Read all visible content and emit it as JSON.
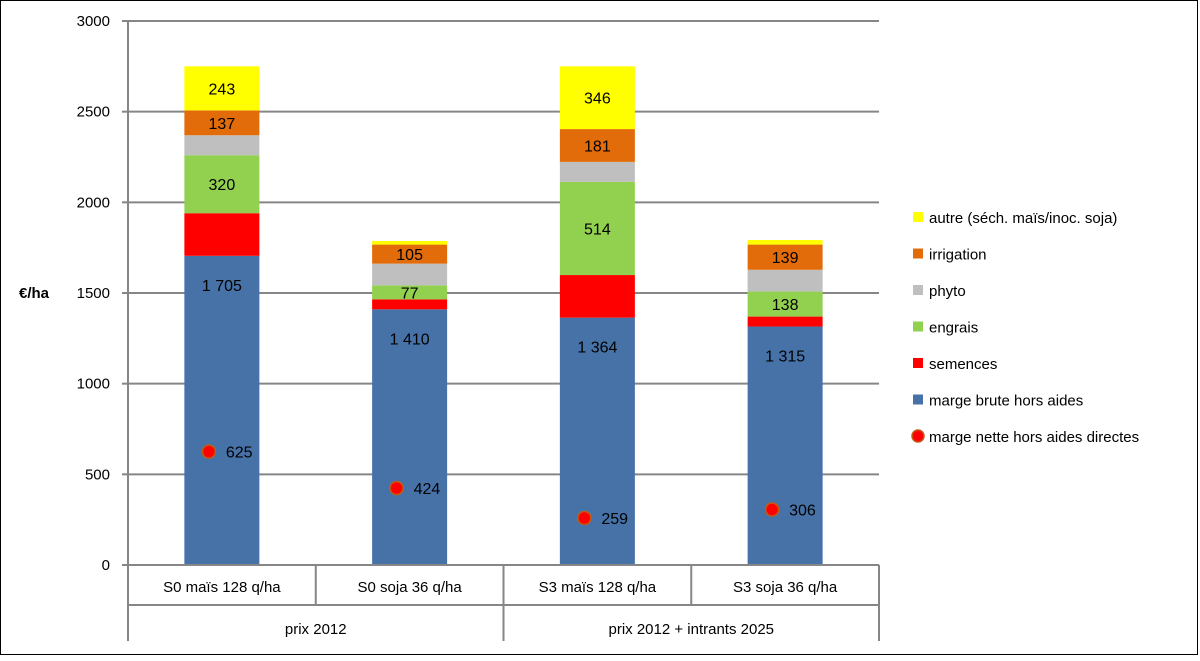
{
  "chart_data": {
    "type": "bar",
    "stacked": true,
    "ylabel": "€/ha",
    "ylim": [
      0,
      3000
    ],
    "yticks": [
      0,
      500,
      1000,
      1500,
      2000,
      2500,
      3000
    ],
    "grid": true,
    "legend_position": "right",
    "categories": [
      "S0 maïs 128 q/ha",
      "S0 soja 36 q/ha",
      "S3 maïs 128 q/ha",
      "S3 soja 36 q/ha"
    ],
    "groups": [
      {
        "label": "prix 2012",
        "span": [
          0,
          1
        ]
      },
      {
        "label": "prix 2012 + intrants 2025",
        "span": [
          2,
          3
        ]
      }
    ],
    "series": [
      {
        "name": "marge brute hors aides",
        "color": "#4672A8",
        "values": [
          1705,
          1410,
          1364,
          1315
        ],
        "labels": [
          "1 705",
          "1 410",
          "1 364",
          "1 315"
        ]
      },
      {
        "name": "semences",
        "color": "#FF0000",
        "values": [
          235,
          55,
          235,
          55
        ],
        "labels": [
          "",
          "",
          "",
          ""
        ]
      },
      {
        "name": "engrais",
        "color": "#92D050",
        "values": [
          320,
          77,
          514,
          138
        ],
        "labels": [
          "320",
          "77",
          "514",
          "138"
        ]
      },
      {
        "name": "phyto",
        "color": "#BFBFBF",
        "values": [
          110,
          120,
          110,
          120
        ],
        "labels": [
          "",
          "",
          "",
          ""
        ]
      },
      {
        "name": "irrigation",
        "color": "#E36C0A",
        "values": [
          137,
          105,
          181,
          139
        ],
        "labels": [
          "137",
          "105",
          "181",
          "139"
        ]
      },
      {
        "name": "autre (séch. maïs/inoc. soja)",
        "color": "#FFFF00",
        "values": [
          243,
          20,
          346,
          25
        ],
        "labels": [
          "243",
          "",
          "346",
          ""
        ]
      }
    ],
    "markers": {
      "name": "marge nette hors aides directes",
      "color": "#FF0000",
      "values": [
        625,
        424,
        259,
        306
      ],
      "labels": [
        "625",
        "424",
        "259",
        "306"
      ]
    },
    "legend_order": [
      "autre (séch. maïs/inoc. soja)",
      "irrigation",
      "phyto",
      "engrais",
      "semences",
      "marge brute hors aides",
      "marge nette hors aides directes"
    ]
  }
}
